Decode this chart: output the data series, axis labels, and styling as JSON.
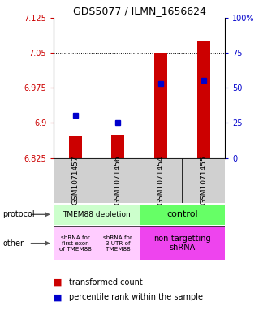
{
  "title": "GDS5077 / ILMN_1656624",
  "samples": [
    "GSM1071457",
    "GSM1071456",
    "GSM1071454",
    "GSM1071455"
  ],
  "red_values": [
    6.873,
    6.875,
    7.05,
    7.075
  ],
  "blue_values": [
    6.916,
    6.901,
    6.984,
    6.991
  ],
  "ylim_min": 6.825,
  "ylim_max": 7.125,
  "yticks_left": [
    6.825,
    6.9,
    6.975,
    7.05,
    7.125
  ],
  "yticks_right_vals": [
    0,
    25,
    50,
    75,
    100
  ],
  "yticks_right_labels": [
    "0",
    "25",
    "50",
    "75",
    "100%"
  ],
  "left_color": "#cc0000",
  "right_color": "#0000cc",
  "bar_width": 0.3,
  "protocol_labels": [
    "TMEM88 depletion",
    "control"
  ],
  "protocol_colors": [
    "#ccffcc",
    "#66ff66"
  ],
  "other_labels_left1": "shRNA for\nfirst exon\nof TMEM88",
  "other_labels_left2": "shRNA for\n3'UTR of\nTMEM88",
  "other_labels_right": "non-targetting\nshRNA",
  "other_color_left": "#ffccff",
  "other_color_right": "#ee44ee",
  "sample_box_color": "#d0d0d0",
  "plot_bg": "#ffffff",
  "fig_bg": "#ffffff"
}
